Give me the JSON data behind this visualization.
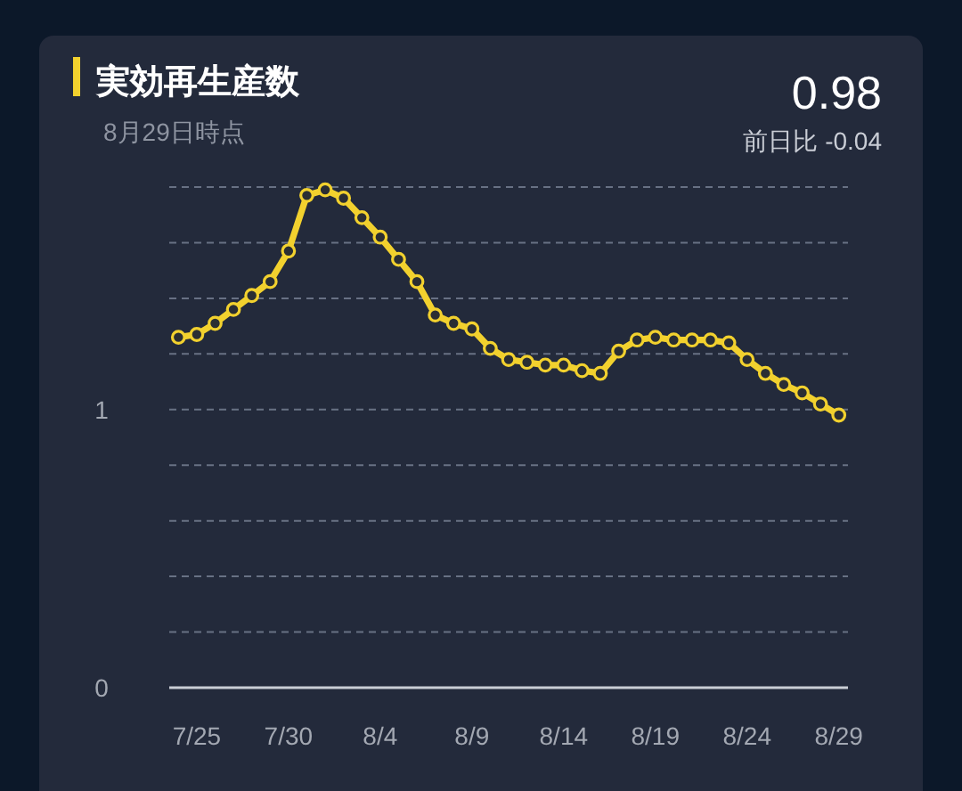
{
  "chart_data": {
    "type": "line",
    "title": "実効再生産数",
    "subtitle": "8月29日時点",
    "annotations": [
      "0.98",
      "前日比 -0.04"
    ],
    "categories": [
      null,
      "7/25",
      null,
      null,
      null,
      null,
      "7/30",
      null,
      null,
      null,
      null,
      "8/4",
      null,
      null,
      null,
      null,
      "8/9",
      null,
      null,
      null,
      null,
      "8/14",
      null,
      null,
      null,
      null,
      "8/19",
      null,
      null,
      null,
      null,
      "8/24",
      null,
      null,
      null,
      null,
      "8/29"
    ],
    "series": [
      {
        "color": "#f2d12e",
        "values": [
          1.26,
          1.27,
          1.31,
          1.36,
          1.41,
          1.46,
          1.57,
          1.77,
          1.79,
          1.76,
          1.69,
          1.62,
          1.54,
          1.46,
          1.34,
          1.31,
          1.29,
          1.22,
          1.18,
          1.17,
          1.16,
          1.16,
          1.14,
          1.13,
          1.21,
          1.25,
          1.26,
          1.25,
          1.25,
          1.25,
          1.24,
          1.18,
          1.13,
          1.09,
          1.06,
          1.02,
          0.98
        ]
      }
    ],
    "ylim": [
      0,
      1.8
    ],
    "yticks": [
      0,
      {
        "value": 0.2,
        "label": null
      },
      {
        "value": 0.4,
        "label": null
      },
      {
        "value": 0.6,
        "label": null
      },
      {
        "value": 0.8,
        "label": null
      },
      1,
      {
        "value": 1.2,
        "label": null
      },
      {
        "value": 1.4,
        "label": null
      },
      {
        "value": 1.6,
        "label": null
      },
      {
        "value": 1.8,
        "label": null
      }
    ],
    "grid": "y",
    "marker": "circle",
    "line_style": "solid"
  }
}
